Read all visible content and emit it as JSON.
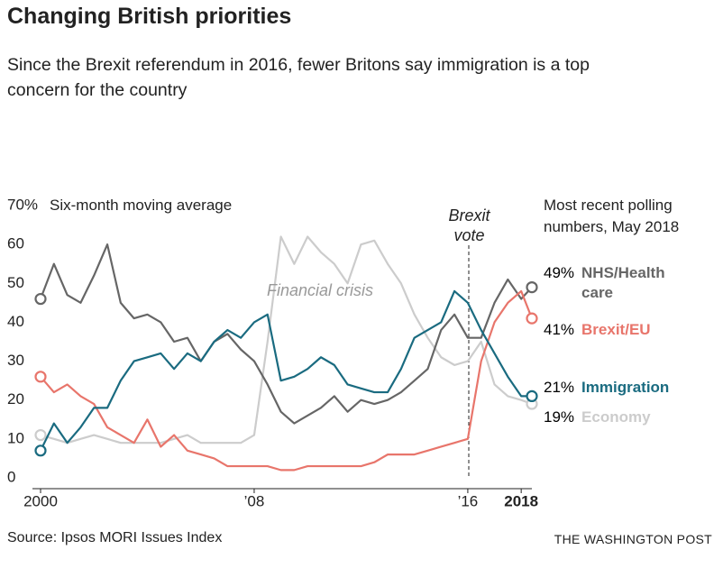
{
  "title": "Changing British priorities",
  "subtitle": "Since the Brexit referendum in 2016, fewer Britons say immigration is a top concern for the country",
  "source": "Source: Ipsos MORI Issues Index",
  "credit": "THE WASHINGTON POST",
  "chart_data": {
    "type": "line",
    "annotations": [
      "Six-month moving average",
      "Most recent polling numbers, May 2018",
      "Financial crisis",
      "Brexit vote"
    ],
    "x": [
      2000,
      2000.5,
      2001,
      2001.5,
      2002,
      2002.5,
      2003,
      2003.5,
      2004,
      2004.5,
      2005,
      2005.5,
      2006,
      2006.5,
      2007,
      2007.5,
      2008,
      2008.5,
      2009,
      2009.5,
      2010,
      2010.5,
      2011,
      2011.5,
      2012,
      2012.5,
      2013,
      2013.5,
      2014,
      2014.5,
      2015,
      2015.5,
      2016,
      2016.5,
      2017,
      2017.5,
      2018,
      2018.4
    ],
    "xlim": [
      2000,
      2018.4
    ],
    "xticks": [
      2000,
      {
        "value": 2008,
        "label": "’08"
      },
      {
        "value": 2016,
        "label": "’16"
      },
      2018
    ],
    "ylim": [
      0,
      70
    ],
    "yticks": [
      0,
      10,
      20,
      30,
      40,
      50,
      60,
      {
        "value": 70,
        "label": "70%"
      }
    ],
    "grid": false,
    "series": [
      {
        "name": "NHS/Health care",
        "color": "#666666",
        "values": [
          46,
          55,
          47,
          45,
          52,
          60,
          45,
          41,
          42,
          40,
          35,
          36,
          30,
          35,
          37,
          33,
          30,
          24,
          17,
          14,
          16,
          18,
          21,
          17,
          20,
          19,
          20,
          22,
          25,
          28,
          38,
          42,
          36,
          36,
          45,
          51,
          46,
          49
        ],
        "value_labels": [
          null,
          null,
          null,
          null,
          null,
          null,
          null,
          null,
          null,
          null,
          null,
          null,
          null,
          null,
          null,
          null,
          null,
          null,
          null,
          null,
          null,
          null,
          null,
          null,
          null,
          null,
          null,
          null,
          null,
          null,
          null,
          null,
          null,
          null,
          null,
          null,
          null,
          "49%"
        ]
      },
      {
        "name": "Brexit/EU",
        "color": "#e8756b",
        "values": [
          26,
          22,
          24,
          21,
          19,
          13,
          11,
          9,
          15,
          8,
          11,
          7,
          6,
          5,
          3,
          3,
          3,
          3,
          2,
          2,
          3,
          3,
          3,
          3,
          3,
          4,
          6,
          6,
          6,
          7,
          8,
          9,
          10,
          30,
          40,
          45,
          48,
          41
        ],
        "value_labels": [
          null,
          null,
          null,
          null,
          null,
          null,
          null,
          null,
          null,
          null,
          null,
          null,
          null,
          null,
          null,
          null,
          null,
          null,
          null,
          null,
          null,
          null,
          null,
          null,
          null,
          null,
          null,
          null,
          null,
          null,
          null,
          null,
          null,
          null,
          null,
          null,
          null,
          "41%"
        ]
      },
      {
        "name": "Immigration",
        "color": "#1a6b80",
        "values": [
          7,
          14,
          9,
          13,
          18,
          18,
          25,
          30,
          31,
          32,
          28,
          32,
          30,
          35,
          38,
          36,
          40,
          42,
          25,
          26,
          28,
          31,
          29,
          24,
          23,
          22,
          22,
          28,
          36,
          38,
          40,
          48,
          45,
          38,
          32,
          26,
          21,
          21
        ],
        "value_labels": [
          null,
          null,
          null,
          null,
          null,
          null,
          null,
          null,
          null,
          null,
          null,
          null,
          null,
          null,
          null,
          null,
          null,
          null,
          null,
          null,
          null,
          null,
          null,
          null,
          null,
          null,
          null,
          null,
          null,
          null,
          null,
          null,
          null,
          null,
          null,
          null,
          null,
          "21%"
        ]
      },
      {
        "name": "Economy",
        "color": "#cccccc",
        "values": [
          11,
          10,
          9,
          10,
          11,
          10,
          9,
          9,
          9,
          9,
          10,
          11,
          9,
          9,
          9,
          9,
          11,
          35,
          62,
          55,
          62,
          58,
          55,
          50,
          60,
          61,
          55,
          50,
          42,
          36,
          31,
          29,
          30,
          35,
          24,
          21,
          20,
          19
        ],
        "value_labels": [
          null,
          null,
          null,
          null,
          null,
          null,
          null,
          null,
          null,
          null,
          null,
          null,
          null,
          null,
          null,
          null,
          null,
          null,
          null,
          null,
          null,
          null,
          null,
          null,
          null,
          null,
          null,
          null,
          null,
          null,
          null,
          null,
          null,
          null,
          null,
          null,
          null,
          "19%"
        ]
      }
    ]
  }
}
